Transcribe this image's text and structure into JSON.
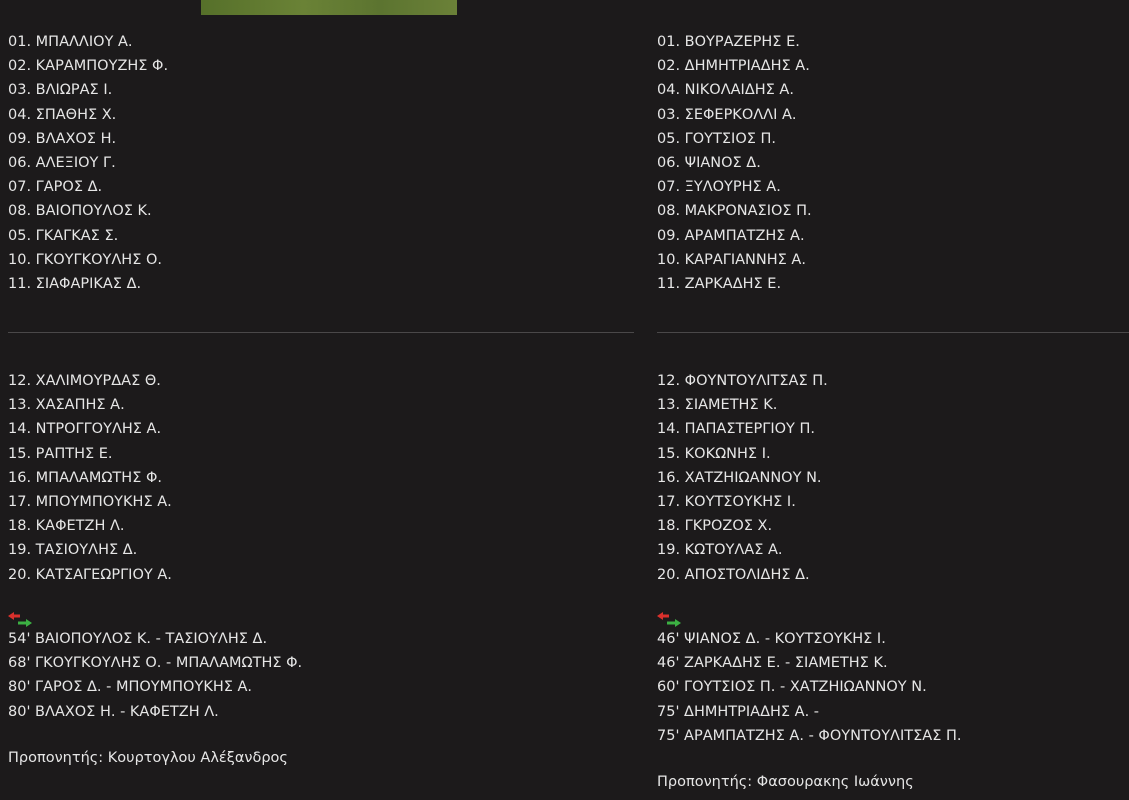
{
  "home": {
    "starters": [
      "01. ΜΠΑΛΛΙΟΥ Α.",
      "02. ΚΑΡΑΜΠΟΥΖΗΣ Φ.",
      "03. ΒΛΙΩΡΑΣ Ι.",
      "04. ΣΠΑΘΗΣ Χ.",
      "09. ΒΛΑΧΟΣ Η.",
      "06. ΑΛΕΞΙΟΥ Γ.",
      "07. ΓΑΡΟΣ Δ.",
      "08. ΒΑΙΟΠΟΥΛΟΣ Κ.",
      "05. ΓΚΑΓΚΑΣ Σ.",
      "10. ΓΚΟΥΓΚΟΥΛΗΣ Ο.",
      "11. ΣΙΑΦΑΡΙΚΑΣ Δ."
    ],
    "substitutes": [
      "12. ΧΑΛΙΜΟΥΡΔΑΣ Θ.",
      "13. ΧΑΣΑΠΗΣ Α.",
      "14. ΝΤΡΟΓΓΟΥΛΗΣ Α.",
      "15. ΡΑΠΤΗΣ Ε.",
      "16. ΜΠΑΛΑΜΩΤΗΣ Φ.",
      "17. ΜΠΟΥΜΠΟΥΚΗΣ Α.",
      "18. ΚΑΦΕΤΖΗ Λ.",
      "19. ΤΑΣΙΟΥΛΗΣ Δ.",
      "20. ΚΑΤΣΑΓΕΩΡΓΙΟΥ Α."
    ],
    "substitutions": [
      "54' ΒΑΙΟΠΟΥΛΟΣ Κ. - ΤΑΣΙΟΥΛΗΣ Δ.",
      "68' ΓΚΟΥΓΚΟΥΛΗΣ Ο. - ΜΠΑΛΑΜΩΤΗΣ Φ.",
      "80' ΓΑΡΟΣ Δ. - ΜΠΟΥΜΠΟΥΚΗΣ Α.",
      "80' ΒΛΑΧΟΣ Η. - ΚΑΦΕΤΖΗ Λ."
    ],
    "coach": "Προπονητής: Κουρτογλου Αλέξανδρος"
  },
  "away": {
    "starters": [
      "01. ΒΟΥΡΑΖΕΡΗΣ Ε.",
      "02. ΔΗΜΗΤΡΙΑΔΗΣ Α.",
      "04. ΝΙΚΟΛΑΙΔΗΣ Α.",
      "03. ΣΕΦΕΡΚΟΛΛΙ Α.",
      "05. ΓΟΥΤΣΙΟΣ Π.",
      "06. ΨΙΑΝΟΣ Δ.",
      "07. ΞΥΛΟΥΡΗΣ Α.",
      "08. ΜΑΚΡΟΝΑΣΙΟΣ Π.",
      "09. ΑΡΑΜΠΑΤΖΗΣ Α.",
      "10. ΚΑΡΑΓΙΑΝΝΗΣ Α.",
      "11. ΖΑΡΚΑΔΗΣ Ε."
    ],
    "substitutes": [
      "12. ΦΟΥΝΤΟΥΛΙΤΣΑΣ Π.",
      "13. ΣΙΑΜΕΤΗΣ Κ.",
      "14. ΠΑΠΑΣΤΕΡΓΙΟΥ Π.",
      "15. ΚΟΚΩΝΗΣ Ι.",
      "16. ΧΑΤΖΗΙΩΑΝΝΟΥ Ν.",
      "17. ΚΟΥΤΣΟΥΚΗΣ Ι.",
      "18. ΓΚΡΟΖΟΣ Χ.",
      "19. ΚΩΤΟΥΛΑΣ Α.",
      "20. ΑΠΟΣΤΟΛΙΔΗΣ Δ."
    ],
    "substitutions": [
      "46' ΨΙΑΝΟΣ Δ. - ΚΟΥΤΣΟΥΚΗΣ Ι.",
      "46' ΖΑΡΚΑΔΗΣ Ε. - ΣΙΑΜΕΤΗΣ Κ.",
      "60' ΓΟΥΤΣΙΟΣ Π. - ΧΑΤΖΗΙΩΑΝΝΟΥ Ν.",
      "75' ΔΗΜΗΤΡΙΑΔΗΣ Α. -",
      "75' ΑΡΑΜΠΑΤΖΗΣ Α. - ΦΟΥΝΤΟΥΛΙΤΣΑΣ Π."
    ],
    "coach": "Προπονητής: Φασουρακης Ιωάννης"
  },
  "icons": {
    "substitution": "substitution-arrows-icon",
    "pitch": "pitch-image"
  },
  "colors": {
    "background": "#1c1a1b",
    "text": "#e6e6e6",
    "arrow_out": "#d9302c",
    "arrow_in": "#3cb043"
  }
}
